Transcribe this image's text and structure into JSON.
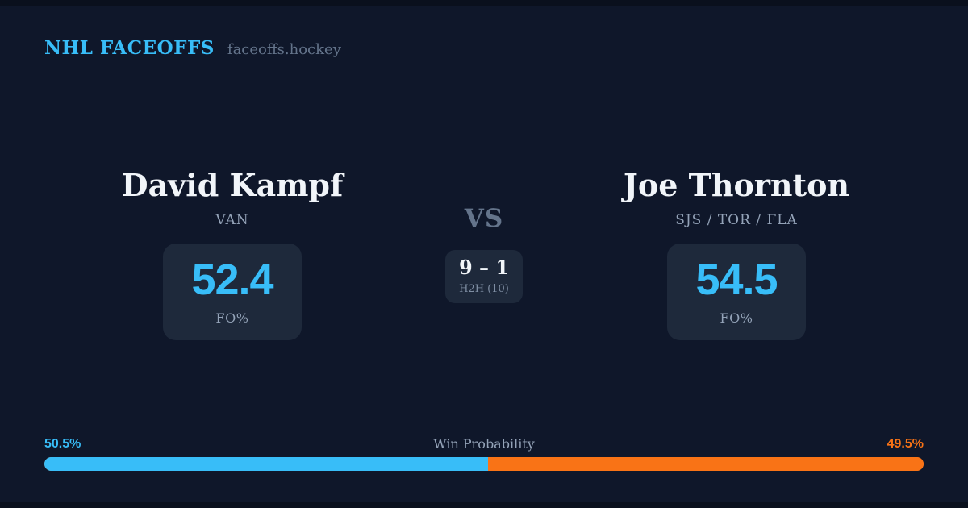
{
  "header": {
    "brand": "NHL FACEOFFS",
    "site": "faceoffs.hockey"
  },
  "matchup": {
    "vs_label": "VS",
    "h2h": {
      "score": "9 – 1",
      "label": "H2H (10)"
    },
    "left": {
      "name": "David Kampf",
      "teams": "VAN",
      "stat_value": "52.4",
      "stat_label": "FO%"
    },
    "right": {
      "name": "Joe Thornton",
      "teams": "SJS / TOR / FLA",
      "stat_value": "54.5",
      "stat_label": "FO%"
    }
  },
  "win_probability": {
    "title": "Win Probability",
    "left_label": "50.5%",
    "right_label": "49.5%",
    "left_value": 50.5,
    "right_value": 49.5
  },
  "colors": {
    "background": "#0f172a",
    "edge_strip": "#0a101d",
    "panel": "#1e293b",
    "accent_blue": "#38bdf8",
    "accent_orange": "#f97316",
    "text_primary": "#f1f5f9",
    "text_muted": "#94a3b8",
    "text_dim": "#64748b"
  },
  "chart_data": {
    "type": "bar",
    "title": "Win Probability",
    "categories": [
      "David Kampf",
      "Joe Thornton"
    ],
    "values": [
      50.5,
      49.5
    ],
    "unit": "%",
    "xlabel": "",
    "ylabel": "",
    "xlim": [
      0,
      100
    ],
    "legend_position": "none",
    "grid": false,
    "layout": "single horizontal stacked pill bar; blue segment (David Kampf, 50.5%) on left, orange segment (Joe Thornton, 49.5%) on right",
    "supporting_stats": {
      "faceoff_pct": {
        "David Kampf": 52.4,
        "Joe Thornton": 54.5
      },
      "head_to_head": {
        "score": "9 – 1",
        "sample": "H2H (10)"
      }
    }
  }
}
